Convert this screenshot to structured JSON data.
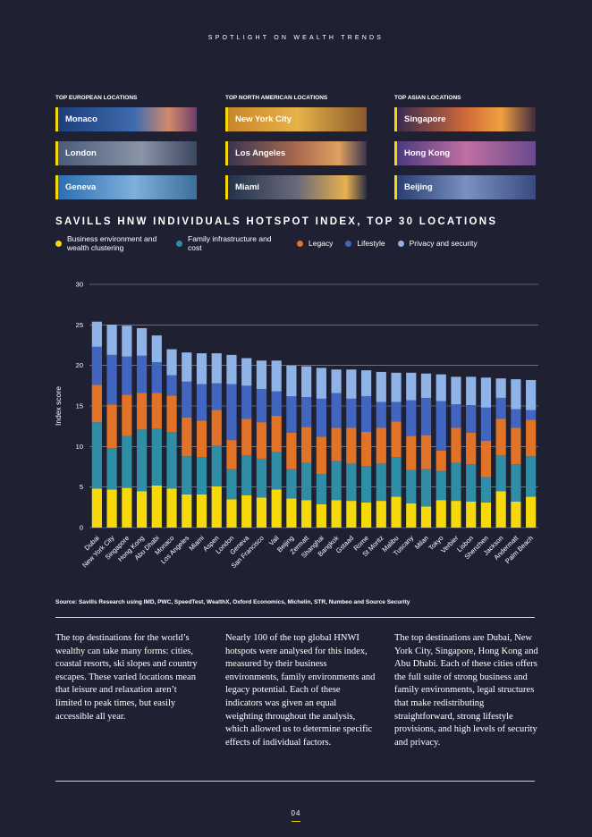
{
  "header": {
    "kicker": "SPOTLIGHT ON WEALTH TRENDS"
  },
  "locations": [
    {
      "heading": "TOP EUROPEAN LOCATIONS",
      "items": [
        "Monaco",
        "London",
        "Geneva"
      ]
    },
    {
      "heading": "TOP NORTH AMERICAN LOCATIONS",
      "items": [
        "New York City",
        "Los Angeles",
        "Miami"
      ]
    },
    {
      "heading": "TOP ASIAN LOCATIONS",
      "items": [
        "Singapore",
        "Hong Kong",
        "Beijing"
      ]
    }
  ],
  "chart_data": {
    "type": "stacked_bar",
    "title": "SAVILLS HNW INDIVIDUALS HOTSPOT INDEX, TOP 30 LOCATIONS",
    "ylabel": "Index score",
    "categories": [
      "Dubai",
      "New York City",
      "Singapore",
      "Hong Kong",
      "Abu Dhabi",
      "Monaco",
      "Los Angeles",
      "Miami",
      "Aspen",
      "London",
      "Geneva",
      "San Francisco",
      "Vail",
      "Beijing",
      "Zermatt",
      "Shanghai",
      "Bangkok",
      "Gstaad",
      "Rome",
      "St Moritz",
      "Malibu",
      "Tuscany",
      "Milan",
      "Tokyo",
      "Verbier",
      "Lisbon",
      "Shenzhen",
      "Jackson",
      "Andermatt",
      "Palm Beach"
    ],
    "series": [
      {
        "name": "Business environment and wealth clustering",
        "color": "#f5d90a",
        "values": [
          4.8,
          4.7,
          4.9,
          4.5,
          5.2,
          4.8,
          4.1,
          4.1,
          5.1,
          3.5,
          4.0,
          3.7,
          4.7,
          3.6,
          3.4,
          2.9,
          3.4,
          3.3,
          3.1,
          3.3,
          3.8,
          3.0,
          2.6,
          3.4,
          3.3,
          3.2,
          3.1,
          4.5,
          3.2,
          3.8
        ]
      },
      {
        "name": "Family infrastructure and cost",
        "color": "#2f8ea6",
        "values": [
          8.2,
          5.1,
          6.4,
          7.6,
          7.0,
          7.0,
          4.7,
          4.6,
          5.0,
          3.7,
          4.9,
          4.8,
          4.6,
          3.6,
          4.6,
          3.7,
          4.8,
          4.6,
          4.5,
          4.6,
          4.9,
          4.1,
          4.6,
          3.6,
          4.7,
          4.6,
          3.1,
          4.4,
          4.6,
          5.0
        ]
      },
      {
        "name": "Legacy",
        "color": "#e07328",
        "values": [
          4.6,
          5.4,
          5.1,
          4.5,
          4.4,
          4.5,
          4.8,
          4.5,
          4.4,
          3.6,
          4.5,
          4.5,
          4.5,
          4.5,
          4.4,
          4.6,
          4.1,
          4.4,
          4.2,
          4.4,
          4.4,
          4.2,
          4.2,
          2.5,
          4.3,
          3.9,
          4.5,
          4.5,
          4.5,
          4.5
        ]
      },
      {
        "name": "Lifestyle",
        "color": "#4266c0",
        "values": [
          4.7,
          6.1,
          4.7,
          4.6,
          3.8,
          2.5,
          4.4,
          4.5,
          3.3,
          6.9,
          4.1,
          4.1,
          3.0,
          4.5,
          3.7,
          4.7,
          4.3,
          3.6,
          4.4,
          3.2,
          2.4,
          4.4,
          4.6,
          6.1,
          2.9,
          3.4,
          4.1,
          2.6,
          2.3,
          1.2
        ]
      },
      {
        "name": "Privacy and security",
        "color": "#8fb3e6",
        "values": [
          3.1,
          3.7,
          3.8,
          3.4,
          3.3,
          3.2,
          3.6,
          3.8,
          3.7,
          3.6,
          3.4,
          3.5,
          3.8,
          3.8,
          3.8,
          3.8,
          2.9,
          3.6,
          3.2,
          3.7,
          3.6,
          3.4,
          3.0,
          3.3,
          3.4,
          3.5,
          3.7,
          2.4,
          3.7,
          3.7
        ]
      }
    ],
    "ylim": [
      0,
      30
    ],
    "yticks": [
      0,
      5,
      10,
      15,
      20,
      25,
      30
    ],
    "grid": true
  },
  "source": "Source: Savills Research using IMD, PWC, SpeedTest, WealthX, Oxford Economics, Michelin, STR, Numbeo and Source Security",
  "columns": [
    "The top destinations for the world’s wealthy can take many forms: cities, coastal resorts, ski slopes and country escapes. These varied locations mean that leisure and relaxation aren’t limited to peak times, but easily accessible all year.",
    "Nearly 100 of the top global HNWI hotspots were analysed for this index, measured by their business environments, family environments and legacy potential. Each of these indicators was given an equal weighting throughout the analysis, which allowed us to determine specific effects of individual factors.",
    "The top destinations are Dubai, New York City, Singapore, Hong Kong and Abu Dhabi. Each of these cities offers the full suite of strong business and family environments, legal structures that make redistributing straightforward, strong lifestyle provisions, and high levels of security and privacy."
  ],
  "page_number": "04"
}
